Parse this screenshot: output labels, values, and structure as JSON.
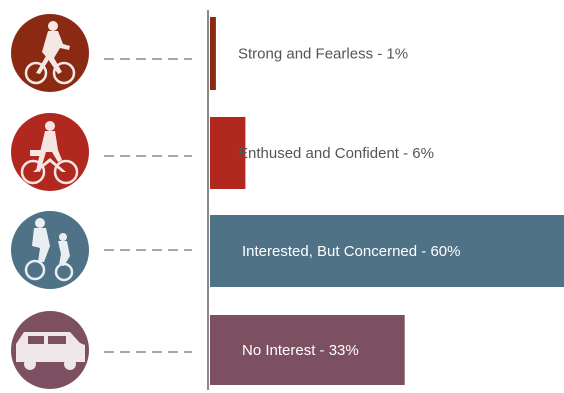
{
  "chart_data": {
    "type": "bar",
    "orientation": "horizontal",
    "categories": [
      "Strong and Fearless - 1%",
      "Enthused and Confident - 6%",
      "Interested, But Concerned - 60%",
      "No Interest - 33%"
    ],
    "values": [
      1,
      6,
      60,
      33
    ],
    "unit": "%",
    "xlim": [
      0,
      60
    ],
    "grid": false,
    "legend": "none",
    "icons": [
      "road-cyclist-icon",
      "commuter-cyclist-icon",
      "family-cyclists-icon",
      "car-icon"
    ],
    "colors": [
      "#8b2a12",
      "#b0281e",
      "#4f7286",
      "#7d5061"
    ],
    "label_colors": [
      "#555555",
      "#555555",
      "#ffffff",
      "#ffffff"
    ]
  }
}
